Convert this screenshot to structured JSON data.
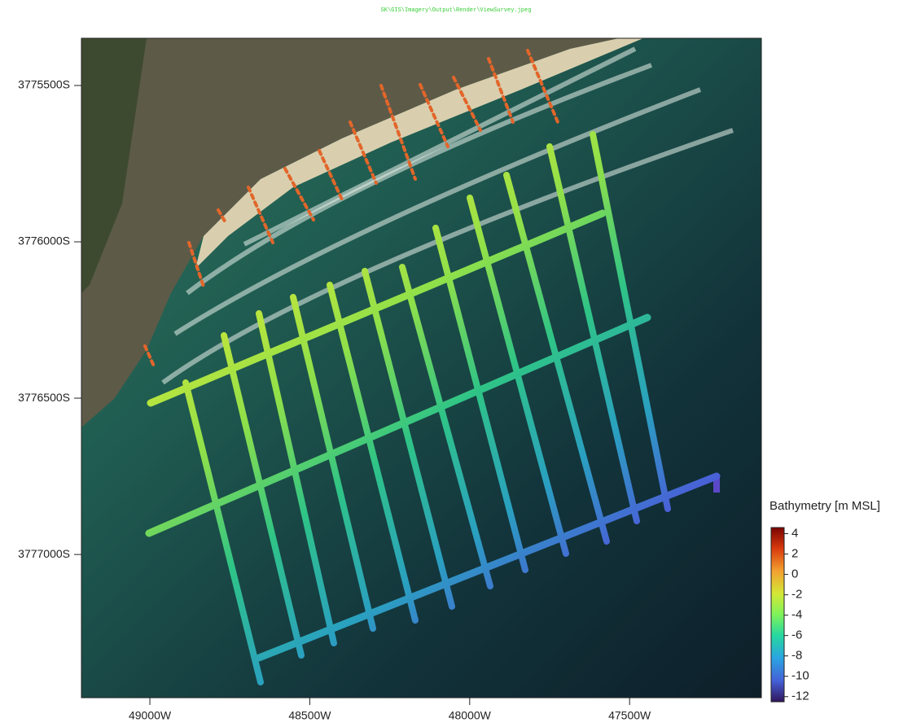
{
  "header": {
    "path": "SK\\GIS\\Imagery\\Output\\Render\\ViewSurvey.jpeg"
  },
  "map": {
    "xlim": [
      49214,
      47088
    ],
    "ylim": [
      3775349,
      3777458
    ],
    "xticks": [
      {
        "value": 49000,
        "label": "49000W"
      },
      {
        "value": 48500,
        "label": "48500W"
      },
      {
        "value": 48000,
        "label": "48000W"
      },
      {
        "value": 47500,
        "label": "47500W"
      }
    ],
    "yticks": [
      {
        "value": 3775500,
        "label": "3775500S"
      },
      {
        "value": 3776000,
        "label": "3776000S"
      },
      {
        "value": 3776500,
        "label": "3776500S"
      },
      {
        "value": 3777000,
        "label": "3777000S"
      }
    ]
  },
  "colorbar": {
    "title": "Bathymetry [m MSL]",
    "lim": [
      -12.5,
      4.6
    ],
    "ticks": [
      4,
      2,
      0,
      -2,
      -4,
      -6,
      -8,
      -10,
      -12
    ]
  }
}
